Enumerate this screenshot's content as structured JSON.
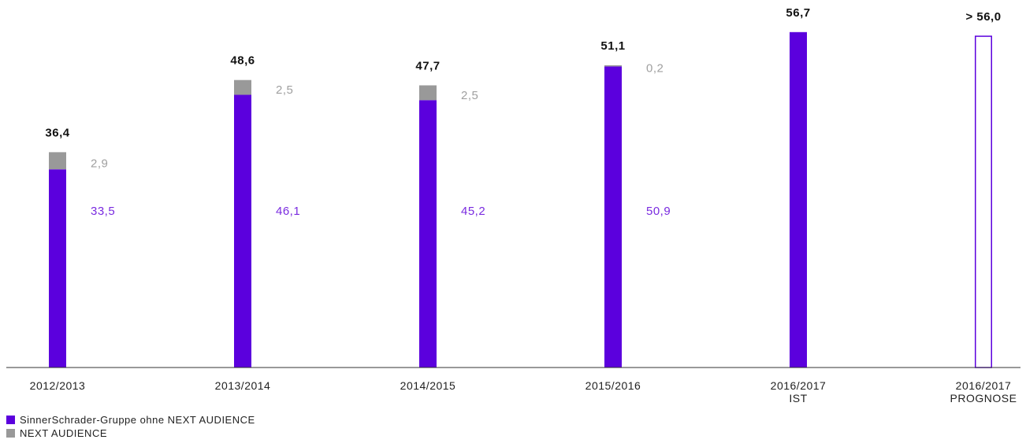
{
  "chart_data": {
    "type": "stacked_bar",
    "categories": [
      "2012/2013",
      "2013/2014",
      "2014/2015",
      "2015/2016",
      "2016/2017\nIST",
      "2016/2017\nPROGNOSE"
    ],
    "series": [
      {
        "name": "SinnerSchrader-Gruppe ohne NEXT AUDIENCE",
        "color": "#5b00dd",
        "values": [
          33.5,
          46.1,
          45.2,
          50.9,
          56.7,
          null
        ],
        "value_labels": [
          "33,5",
          "46,1",
          "45,2",
          "50,9",
          null,
          null
        ]
      },
      {
        "name": "NEXT AUDIENCE",
        "color": "#999999",
        "values": [
          2.9,
          2.5,
          2.5,
          0.2,
          null,
          null
        ],
        "value_labels": [
          "2,9",
          "2,5",
          "2,5",
          "0,2",
          null,
          null
        ]
      }
    ],
    "totals": {
      "values": [
        36.4,
        48.6,
        47.7,
        51.1,
        56.7,
        56.0
      ],
      "value_labels": [
        "36,4",
        "48,6",
        "47,7",
        "51,1",
        "56,7",
        "> 56,0"
      ]
    },
    "ylim": [
      0,
      60
    ]
  }
}
